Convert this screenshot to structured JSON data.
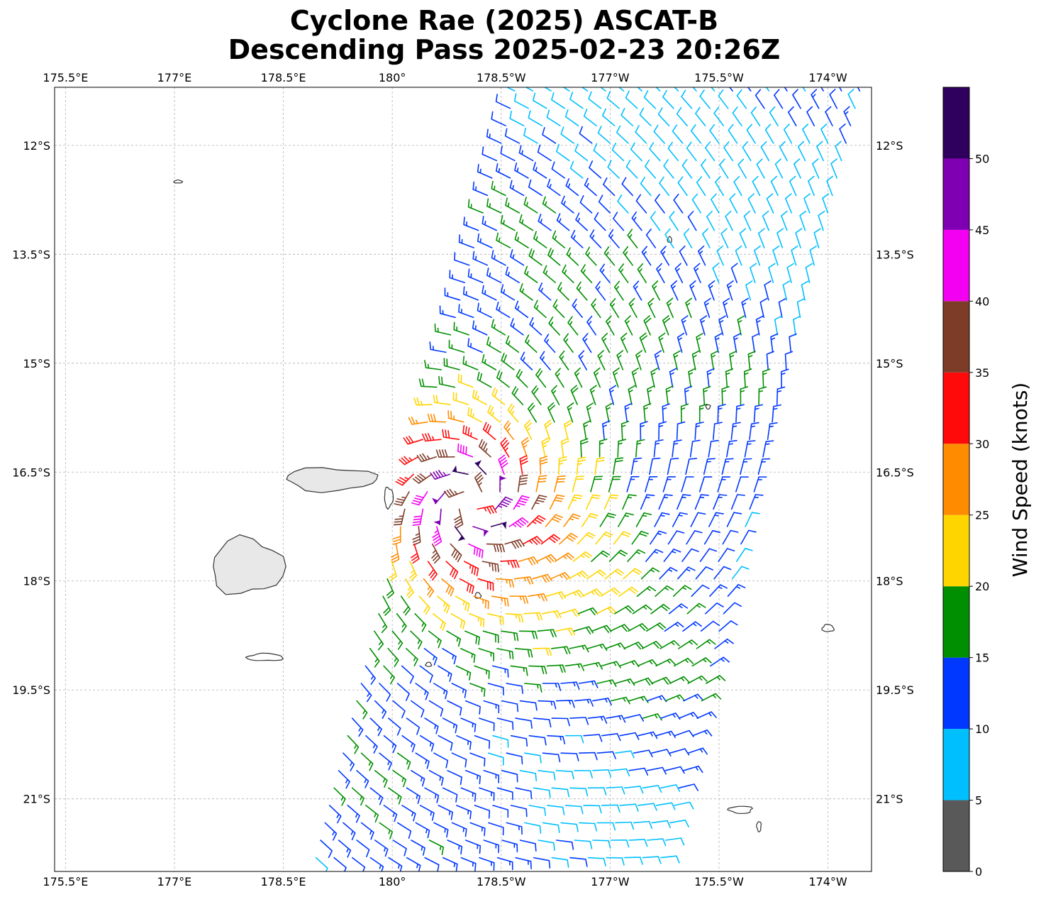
{
  "chart_data": {
    "type": "wind-barb-map",
    "title_lines": [
      "Cyclone Rae (2025) ASCAT-B",
      "Descending Pass 2025-02-23 20:26Z"
    ],
    "lon_ticks": [
      "175.5°E",
      "177°E",
      "178.5°E",
      "180°",
      "178.5°W",
      "177°W",
      "175.5°W",
      "174°W"
    ],
    "lat_ticks": [
      "12°S",
      "13.5°S",
      "15°S",
      "16.5°S",
      "18°S",
      "19.5°S",
      "21°S"
    ],
    "lon_range_east_deg": [
      175.35,
      186.6
    ],
    "lat_range_deg": [
      -11.2,
      -22.0
    ],
    "lon_tick_values_east_deg": [
      175.5,
      177.0,
      178.5,
      180.0,
      181.5,
      183.0,
      184.5,
      186.0
    ],
    "lat_tick_values_deg": [
      -12.0,
      -13.5,
      -15.0,
      -16.5,
      -18.0,
      -19.5,
      -21.0
    ],
    "grid": true,
    "storm_center": {
      "lat": -16.9,
      "lon_east": 181.1
    },
    "swath_edges": {
      "west": [
        [
          -11.2,
          181.7
        ],
        [
          -13.5,
          181.1
        ],
        [
          -16.5,
          180.3
        ],
        [
          -19.5,
          179.55
        ],
        [
          -22.0,
          178.9
        ]
      ],
      "east": [
        [
          -11.2,
          186.6
        ],
        [
          -13.5,
          186.0
        ],
        [
          -16.5,
          185.2
        ],
        [
          -19.5,
          184.4
        ],
        [
          -22.0,
          183.8
        ]
      ]
    },
    "colorbar": {
      "label": "Wind Speed (knots)",
      "orientation": "vertical",
      "placement": "right",
      "ticks": [
        "0",
        "5",
        "10",
        "15",
        "20",
        "25",
        "30",
        "35",
        "40",
        "45",
        "50"
      ],
      "bins": [
        {
          "min": 0,
          "max": 5,
          "color": "#595959"
        },
        {
          "min": 5,
          "max": 10,
          "color": "#00bfff"
        },
        {
          "min": 10,
          "max": 15,
          "color": "#0038ff"
        },
        {
          "min": 15,
          "max": 20,
          "color": "#008f00"
        },
        {
          "min": 20,
          "max": 25,
          "color": "#ffd500"
        },
        {
          "min": 25,
          "max": 30,
          "color": "#ff8c00"
        },
        {
          "min": 30,
          "max": 35,
          "color": "#ff0a0a"
        },
        {
          "min": 35,
          "max": 40,
          "color": "#7d3c28"
        },
        {
          "min": 40,
          "max": 45,
          "color": "#f300f3"
        },
        {
          "min": 45,
          "max": 50,
          "color": "#7f00b2"
        },
        {
          "min": 50,
          "max": 55,
          "color": "#30005e"
        }
      ]
    },
    "islands": [
      {
        "name": "Viti Levu",
        "lat": -17.8,
        "lon_east": 178.0,
        "r_lat": 0.38,
        "r_lon": 0.5,
        "shaded": true
      },
      {
        "name": "Vanua Levu",
        "lat": -16.6,
        "lon_east": 179.15,
        "r_lat": 0.16,
        "r_lon": 0.62,
        "shaded": true
      },
      {
        "name": "Taveuni",
        "lat": -16.85,
        "lon_east": 179.95,
        "r_lat": 0.14,
        "r_lon": 0.06,
        "shaded": false
      },
      {
        "name": "Kadavu",
        "lat": -19.05,
        "lon_east": 178.25,
        "r_lat": 0.05,
        "r_lon": 0.25,
        "shaded": false
      },
      {
        "name": "Wallis",
        "lat": -13.3,
        "lon_east": 183.82,
        "r_lat": 0.04,
        "r_lon": 0.03,
        "shaded": false
      },
      {
        "name": "Rotuma",
        "lat": -12.5,
        "lon_east": 177.05,
        "r_lat": 0.02,
        "r_lon": 0.06,
        "shaded": false
      },
      {
        "name": "Tongatapu",
        "lat": -21.15,
        "lon_east": 184.8,
        "r_lat": 0.05,
        "r_lon": 0.16,
        "shaded": false
      },
      {
        "name": "Eua",
        "lat": -21.38,
        "lon_east": 185.05,
        "r_lat": 0.07,
        "r_lon": 0.03,
        "shaded": false
      },
      {
        "name": "Vavau",
        "lat": -18.65,
        "lon_east": 186.0,
        "r_lat": 0.05,
        "r_lon": 0.08,
        "shaded": false
      },
      {
        "name": "Niuafoou",
        "lat": -15.6,
        "lon_east": 184.35,
        "r_lat": 0.03,
        "r_lon": 0.03,
        "shaded": false
      },
      {
        "name": "Lakeba",
        "lat": -18.2,
        "lon_east": 181.18,
        "r_lat": 0.04,
        "r_lon": 0.04,
        "shaded": false
      },
      {
        "name": "Matuku",
        "lat": -19.15,
        "lon_east": 180.5,
        "r_lat": 0.03,
        "r_lon": 0.04,
        "shaded": false
      }
    ]
  }
}
